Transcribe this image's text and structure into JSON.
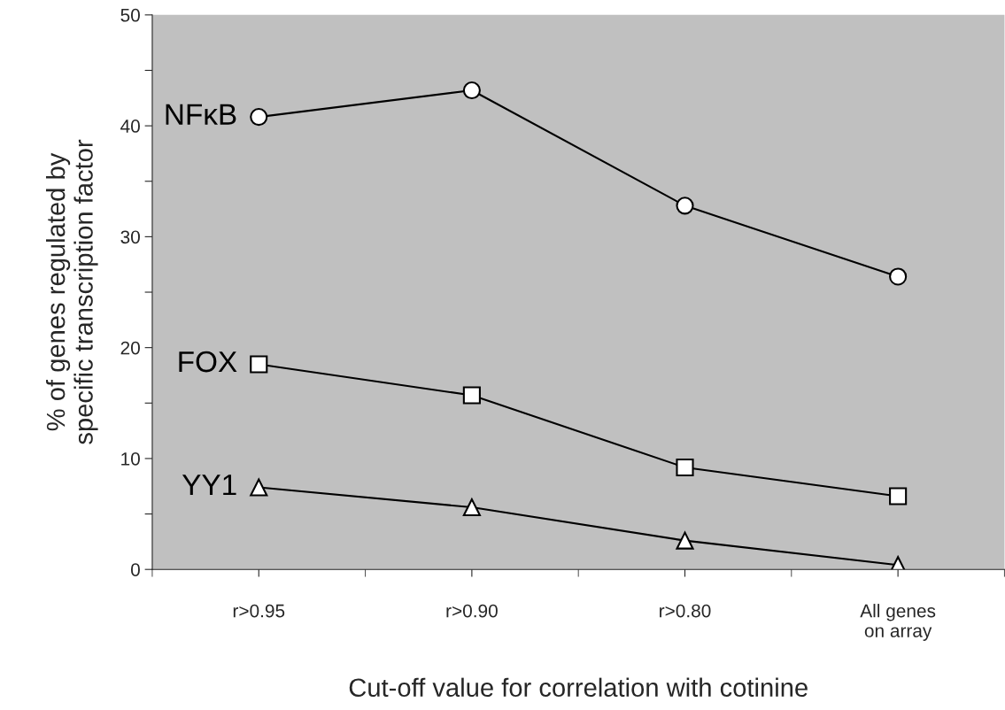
{
  "chart_data": {
    "type": "line",
    "xlabel": "Cut-off value for correlation with cotinine",
    "ylabel": "% of genes regulated by\nspecific transcription factor",
    "categories": [
      "r>0.95",
      "r>0.90",
      "r>0.80",
      "All genes\non array"
    ],
    "series": [
      {
        "name": "NFκB",
        "color": "#000000",
        "marker": "circle",
        "values": [
          40.8,
          43.2,
          32.8,
          26.4
        ]
      },
      {
        "name": "FOX",
        "color": "#000000",
        "marker": "square",
        "values": [
          18.5,
          15.7,
          9.2,
          6.6
        ]
      },
      {
        "name": "YY1",
        "color": "#000000",
        "marker": "triangle",
        "values": [
          7.4,
          5.6,
          2.6,
          0.4
        ]
      }
    ],
    "ylim": [
      0,
      50
    ],
    "yticks": [
      0,
      {
        "value": 5,
        "label": null
      },
      10,
      {
        "value": 15,
        "label": null
      },
      20,
      {
        "value": 25,
        "label": null
      },
      30,
      {
        "value": 35,
        "label": null
      },
      40,
      {
        "value": 45,
        "label": null
      },
      50
    ],
    "grid": false,
    "legend": false,
    "line_style": "solid"
  }
}
